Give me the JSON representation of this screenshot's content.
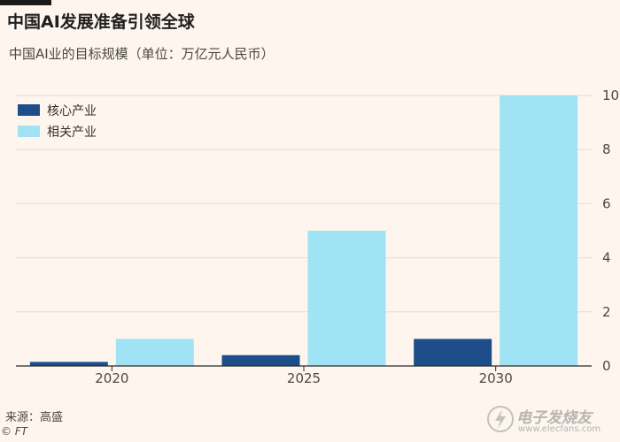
{
  "header": {
    "title": "中国AI发展准备引领全球",
    "subtitle": "中国AI业的目标规模（单位：万亿元人民币）"
  },
  "footer": {
    "source": "来源：高盛",
    "credit": "© FT"
  },
  "watermark": {
    "text": "电子发烧友",
    "sub": "www.elecfans.com"
  },
  "colors": {
    "core": "#1d4e89",
    "related": "#9fe3f5",
    "grid": "#e6dcd2",
    "axis": "#2a2a2a",
    "background": "#fdf5ee"
  },
  "chart_data": {
    "type": "bar",
    "categories": [
      "2020",
      "2025",
      "2030"
    ],
    "series": [
      {
        "name": "核心产业",
        "values": [
          0.15,
          0.4,
          1.0
        ]
      },
      {
        "name": "相关产业",
        "values": [
          1.0,
          5.0,
          10.0
        ]
      }
    ],
    "title": "中国AI发展准备引领全球",
    "subtitle": "中国AI业的目标规模（单位：万亿元人民币）",
    "ylim": [
      0,
      10
    ],
    "yticks": [
      0,
      2,
      4,
      6,
      8,
      10
    ],
    "y_axis_side": "right",
    "grid": true,
    "legend_position": "top-left"
  }
}
